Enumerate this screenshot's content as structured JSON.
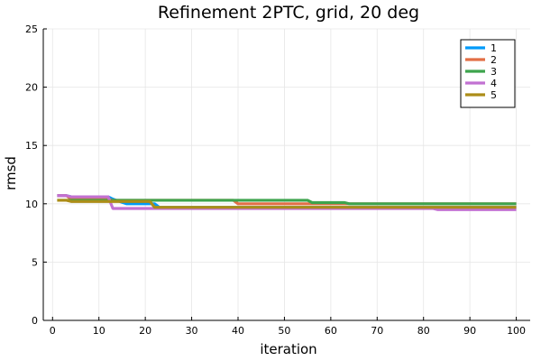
{
  "chart_data": {
    "type": "line",
    "title": "Refinement 2PTC, grid, 20 deg",
    "xlabel": "iteration",
    "ylabel": "rmsd",
    "xlim": [
      -2,
      103
    ],
    "ylim": [
      0,
      25
    ],
    "xticks": [
      0,
      10,
      20,
      30,
      40,
      50,
      60,
      70,
      80,
      90,
      100
    ],
    "yticks": [
      0,
      5,
      10,
      15,
      20,
      25
    ],
    "grid": true,
    "legend_position": "top-right",
    "series": [
      {
        "name": "1",
        "color": "#009af9",
        "x": [
          1,
          3,
          4,
          12,
          13,
          16,
          22,
          23,
          100
        ],
        "y": [
          10.7,
          10.7,
          10.6,
          10.6,
          10.4,
          10.0,
          10.0,
          9.7,
          9.7
        ]
      },
      {
        "name": "2",
        "color": "#e26f46",
        "x": [
          1,
          3,
          4,
          12,
          13,
          39,
          40,
          82,
          100
        ],
        "y": [
          10.7,
          10.7,
          10.4,
          10.4,
          10.3,
          10.3,
          10.0,
          10.0,
          10.0
        ]
      },
      {
        "name": "3",
        "color": "#3da44d",
        "x": [
          1,
          3,
          4,
          55,
          56,
          63,
          64,
          100
        ],
        "y": [
          10.3,
          10.3,
          10.3,
          10.3,
          10.1,
          10.1,
          10.0,
          10.0
        ]
      },
      {
        "name": "4",
        "color": "#c271d2",
        "x": [
          1,
          3,
          4,
          12,
          13,
          82,
          83,
          100
        ],
        "y": [
          10.7,
          10.7,
          10.6,
          10.6,
          9.6,
          9.6,
          9.5,
          9.5
        ]
      },
      {
        "name": "5",
        "color": "#ac8d18",
        "x": [
          1,
          3,
          4,
          21,
          22,
          100
        ],
        "y": [
          10.3,
          10.3,
          10.2,
          10.2,
          9.7,
          9.7
        ]
      }
    ]
  }
}
